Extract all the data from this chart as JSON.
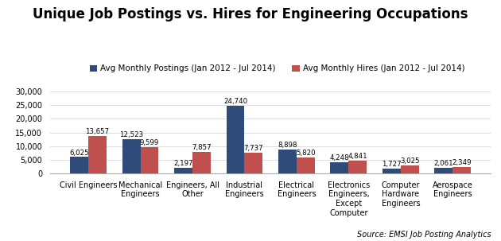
{
  "title": "Unique Job Postings vs. Hires for Engineering Occupations",
  "categories": [
    "Civil Engineers",
    "Mechanical\nEngineers",
    "Engineers, All\nOther",
    "Industrial\nEngineers",
    "Electrical\nEngineers",
    "Electronics\nEngineers,\nExcept\nComputer",
    "Computer\nHardware\nEngineers",
    "Aerospace\nEngineers"
  ],
  "postings": [
    6025,
    12523,
    2197,
    24740,
    8898,
    4248,
    1727,
    2061
  ],
  "hires": [
    13657,
    9599,
    7857,
    7737,
    5820,
    4841,
    3025,
    2349
  ],
  "postings_label": "Avg Monthly Postings (Jan 2012 - Jul 2014)",
  "hires_label": "Avg Monthly Hires (Jan 2012 - Jul 2014)",
  "postings_color": "#2E4B7A",
  "hires_color": "#C0504D",
  "ylim": [
    0,
    30000
  ],
  "yticks": [
    0,
    5000,
    10000,
    15000,
    20000,
    25000,
    30000
  ],
  "source_text": "Source: EMSI Job Posting Analytics",
  "bg_color": "#FFFFFF",
  "title_fontsize": 12,
  "legend_fontsize": 7.5,
  "tick_fontsize": 7,
  "label_fontsize": 6.2,
  "source_fontsize": 7
}
